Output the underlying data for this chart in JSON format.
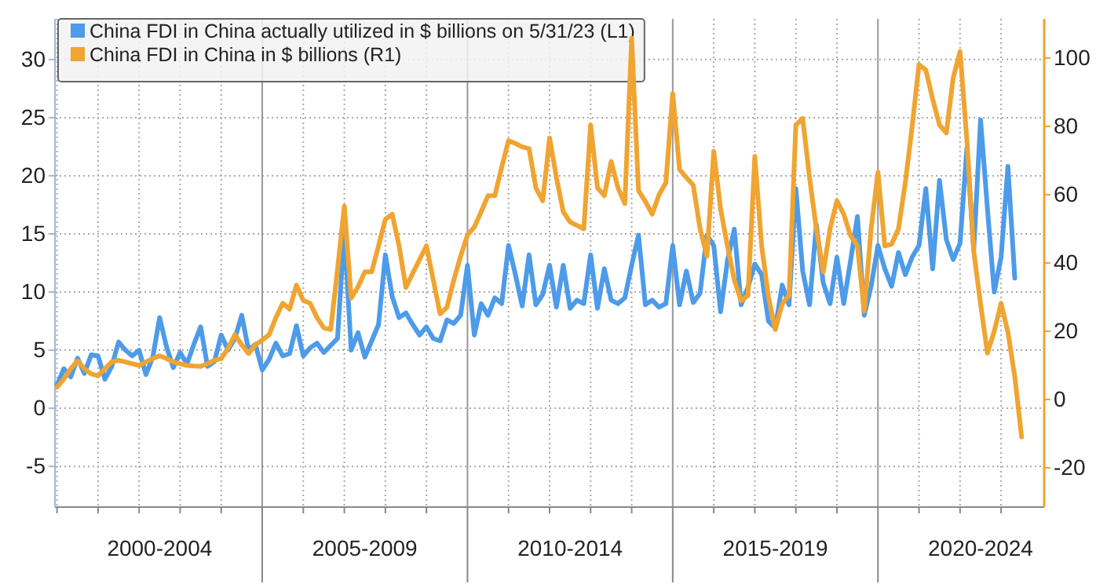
{
  "chart_data": {
    "type": "line",
    "legend": "top left",
    "grid": true,
    "line_style": "solid",
    "marker": "none",
    "categories": [
      null,
      null,
      null,
      null,
      null,
      null,
      null,
      null,
      null,
      null,
      null,
      null,
      null,
      null,
      null,
      "2000-2004",
      null,
      null,
      null,
      null,
      null,
      null,
      null,
      null,
      null,
      null,
      null,
      null,
      null,
      null,
      null,
      null,
      null,
      null,
      null,
      null,
      null,
      null,
      null,
      null,
      null,
      null,
      null,
      null,
      null,
      "2005-2009",
      null,
      null,
      null,
      null,
      null,
      null,
      null,
      null,
      null,
      null,
      null,
      null,
      null,
      null,
      null,
      null,
      null,
      null,
      null,
      null,
      null,
      null,
      null,
      null,
      null,
      null,
      null,
      null,
      null,
      "2010-2014",
      null,
      null,
      null,
      null,
      null,
      null,
      null,
      null,
      null,
      null,
      null,
      null,
      null,
      null,
      null,
      null,
      null,
      null,
      null,
      null,
      null,
      null,
      null,
      null,
      null,
      null,
      null,
      null,
      null,
      "2015-2019",
      null,
      null,
      null,
      null,
      null,
      null,
      null,
      null,
      null,
      null,
      null,
      null,
      null,
      null,
      null,
      null,
      null,
      null,
      null,
      null,
      null,
      null,
      null,
      null,
      null,
      null,
      null,
      null,
      null,
      "2020-2024",
      null,
      null,
      null,
      null,
      null,
      null
    ],
    "ylim": [
      -8.5,
      33.5
    ],
    "yticks": [
      -5,
      0,
      5,
      10,
      15,
      20,
      25,
      30
    ],
    "y2lim": [
      -31.5,
      111.5
    ],
    "y2ticks": [
      -20,
      0,
      20,
      40,
      60,
      80,
      100
    ],
    "series": [
      {
        "name": "China FDI in China actually utilized in $ billions on 5/31/23 (L1)",
        "color": "#4d9be9",
        "axis": "y",
        "values": [
          2.0,
          3.4,
          2.7,
          4.3,
          3.0,
          4.6,
          4.5,
          2.5,
          3.6,
          5.7,
          5.0,
          4.5,
          5.0,
          2.9,
          4.4,
          7.8,
          5.3,
          3.5,
          4.8,
          3.8,
          5.5,
          7.0,
          3.6,
          4.0,
          6.3,
          5.0,
          6.0,
          8.0,
          5.0,
          5.5,
          3.3,
          4.2,
          5.6,
          4.5,
          4.7,
          7.1,
          4.5,
          5.2,
          5.6,
          4.8,
          5.4,
          6.0,
          15.3,
          5.0,
          6.5,
          4.4,
          5.8,
          7.2,
          13.2,
          9.6,
          7.8,
          8.2,
          7.2,
          6.3,
          7.0,
          6.0,
          5.8,
          7.6,
          7.3,
          8.0,
          12.3,
          6.3,
          9.0,
          8.0,
          9.5,
          9.0,
          14.0,
          11.5,
          8.8,
          13.2,
          8.9,
          9.8,
          12.3,
          8.7,
          12.3,
          8.6,
          9.3,
          9.0,
          13.2,
          8.6,
          12.0,
          9.3,
          9.0,
          9.5,
          12.3,
          14.9,
          8.9,
          9.3,
          8.7,
          9.0,
          14.0,
          8.9,
          11.8,
          9.1,
          9.9,
          14.9,
          14.0,
          8.3,
          12.7,
          15.4,
          8.9,
          10.4,
          12.4,
          11.5,
          7.5,
          6.9,
          10.6,
          8.9,
          18.9,
          11.8,
          8.9,
          15.8,
          10.8,
          9.0,
          13.0,
          9.0,
          12.7,
          16.5,
          8.0,
          10.5,
          14.0,
          12.0,
          10.5,
          13.4,
          11.5,
          13.0,
          14.0,
          18.9,
          12.0,
          19.6,
          14.5,
          12.8,
          14.2,
          22.4,
          13.6,
          24.8,
          17.2,
          10.0,
          13.0,
          20.8,
          11.2,
          null
        ]
      },
      {
        "name": "China FDI in China in $ billions (R1)",
        "color": "#f0a431",
        "axis": "y2",
        "values": [
          3.6,
          6,
          9,
          11.3,
          9,
          7.5,
          7.0,
          9,
          11,
          11.5,
          11,
          10.5,
          10.0,
          11,
          12,
          12.8,
          12,
          11,
          10.5,
          10,
          9.8,
          9.7,
          10.5,
          11.5,
          12.0,
          15,
          19.0,
          16,
          13.5,
          16,
          17.4,
          19.0,
          24,
          28.2,
          26.5,
          33.5,
          29,
          28.2,
          24,
          21,
          20.5,
          38,
          56.6,
          29.7,
          33,
          37.4,
          37.4,
          45,
          52.8,
          54.3,
          45,
          32.8,
          37,
          41,
          45.0,
          35,
          25.1,
          27,
          35,
          42,
          48.2,
          50.5,
          55,
          59.7,
          59.7,
          68,
          75.8,
          75,
          74,
          73.5,
          62,
          58.2,
          76.6,
          65,
          55,
          52.0,
          51,
          50,
          80.4,
          62,
          59.7,
          69.7,
          62,
          57.4,
          105.8,
          61.2,
          58,
          54.3,
          60,
          63.5,
          89.6,
          67.4,
          65,
          62.8,
          50,
          42.0,
          72.7,
          55.8,
          45,
          35,
          28.9,
          30.5,
          71.2,
          45.0,
          30,
          20.5,
          28,
          30.5,
          80.4,
          82.3,
          65,
          50,
          37.4,
          50,
          58.2,
          54.3,
          48,
          45.0,
          25.9,
          50,
          66.6,
          45.0,
          45.5,
          50,
          63.5,
          80,
          98.1,
          96.5,
          88,
          80.4,
          78.1,
          94.2,
          101.9,
          76.0,
          43.5,
          28,
          13.6,
          20,
          28.2,
          19.7,
          6.7,
          -11.0
        ]
      }
    ]
  }
}
